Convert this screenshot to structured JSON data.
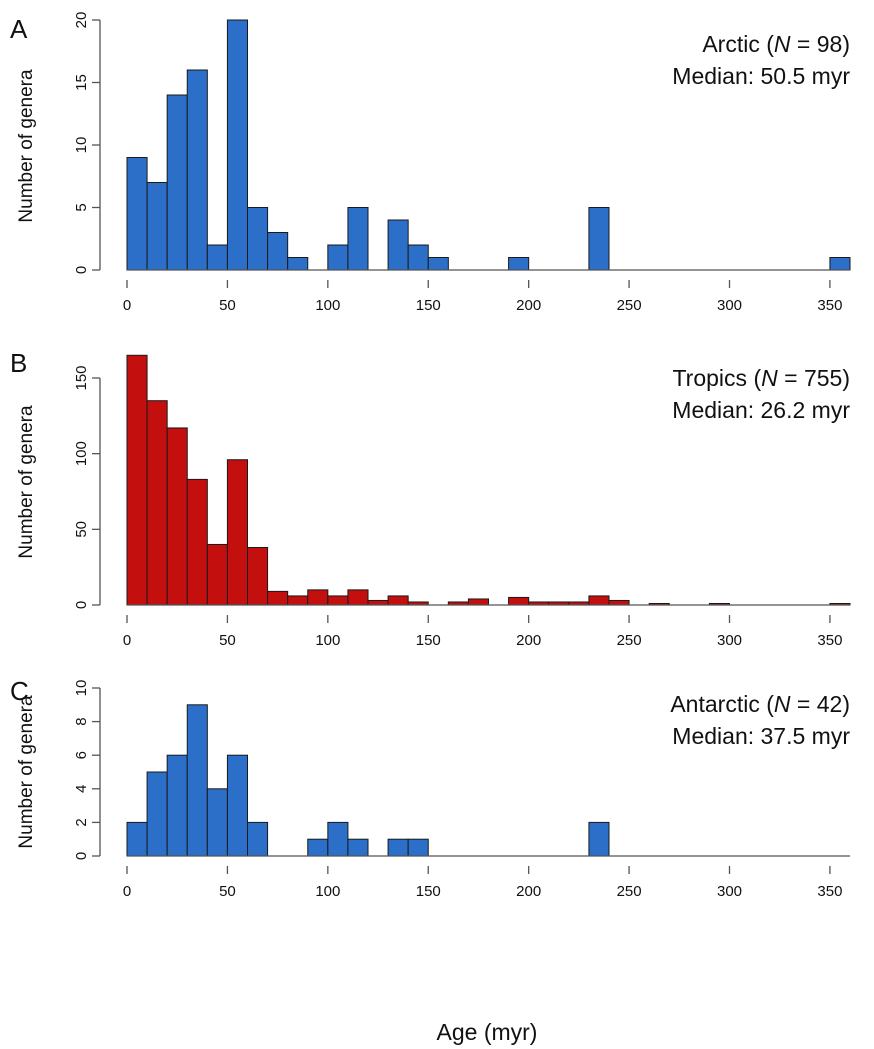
{
  "xlabel": "Age (myr)",
  "bin_width": 10,
  "colors": {
    "blue": "#2b6fc9",
    "red": "#c40f0f",
    "axis": "#555555",
    "bar_edge": "#1a1a1a"
  },
  "chart_data": [
    {
      "type": "bar",
      "panel": "A",
      "ylabel": "Number of genera",
      "annotation": {
        "name": "Arctic",
        "open": "(",
        "n_symbol": "N",
        "eq": " = ",
        "n": "98",
        "close": ")",
        "median_label": "Median: ",
        "median": "50.5",
        "median_unit": " myr"
      },
      "xlim": [
        0,
        360
      ],
      "ylim": [
        0,
        20
      ],
      "yticks": [
        "0",
        "5",
        "10",
        "15",
        "20"
      ],
      "xticks": [
        "0",
        "50",
        "100",
        "150",
        "200",
        "250",
        "300",
        "350"
      ],
      "color": "#2b6fc9",
      "bin_starts": [
        0,
        10,
        20,
        30,
        40,
        50,
        60,
        70,
        80,
        90,
        100,
        110,
        120,
        130,
        140,
        150,
        160,
        170,
        180,
        190,
        200,
        210,
        220,
        230,
        240,
        250,
        260,
        270,
        280,
        290,
        300,
        310,
        320,
        330,
        340,
        350
      ],
      "values": [
        9,
        7,
        14,
        16,
        2,
        20,
        5,
        3,
        1,
        0,
        2,
        5,
        0,
        4,
        2,
        1,
        0,
        0,
        0,
        1,
        0,
        0,
        0,
        5,
        0,
        0,
        0,
        0,
        0,
        0,
        0,
        0,
        0,
        0,
        0,
        1
      ]
    },
    {
      "type": "bar",
      "panel": "B",
      "ylabel": "Number of genera",
      "annotation": {
        "name": "Tropics",
        "open": "(",
        "n_symbol": "N",
        "eq": " = ",
        "n": "755",
        "close": ")",
        "median_label": "Median: ",
        "median": "26.2",
        "median_unit": " myr"
      },
      "xlim": [
        0,
        360
      ],
      "ylim": [
        0,
        150
      ],
      "yticks": [
        "0",
        "50",
        "100",
        "150"
      ],
      "xticks": [
        "0",
        "50",
        "100",
        "150",
        "200",
        "250",
        "300",
        "350"
      ],
      "color": "#c40f0f",
      "bin_starts": [
        0,
        10,
        20,
        30,
        40,
        50,
        60,
        70,
        80,
        90,
        100,
        110,
        120,
        130,
        140,
        150,
        160,
        170,
        180,
        190,
        200,
        210,
        220,
        230,
        240,
        250,
        260,
        270,
        280,
        290,
        300,
        310,
        320,
        330,
        340,
        350
      ],
      "values": [
        165,
        135,
        117,
        83,
        40,
        96,
        38,
        9,
        6,
        10,
        6,
        10,
        3,
        6,
        2,
        0,
        2,
        4,
        0,
        5,
        2,
        2,
        2,
        6,
        3,
        0,
        1,
        0,
        0,
        1,
        0,
        0,
        0,
        0,
        0,
        1
      ]
    },
    {
      "type": "bar",
      "panel": "C",
      "ylabel": "Number of genera",
      "annotation": {
        "name": "Antarctic",
        "open": "(",
        "n_symbol": "N",
        "eq": " = ",
        "n": "42",
        "close": ")",
        "median_label": "Median: ",
        "median": "37.5",
        "median_unit": " myr"
      },
      "xlim": [
        0,
        360
      ],
      "ylim": [
        0,
        10
      ],
      "yticks": [
        "0",
        "2",
        "4",
        "6",
        "8",
        "10"
      ],
      "xticks": [
        "0",
        "50",
        "100",
        "150",
        "200",
        "250",
        "300",
        "350"
      ],
      "color": "#2b6fc9",
      "bin_starts": [
        0,
        10,
        20,
        30,
        40,
        50,
        60,
        70,
        80,
        90,
        100,
        110,
        120,
        130,
        140,
        150,
        160,
        170,
        180,
        190,
        200,
        210,
        220,
        230,
        240,
        250,
        260,
        270,
        280,
        290,
        300,
        310,
        320,
        330,
        340,
        350
      ],
      "values": [
        2,
        5,
        6,
        9,
        4,
        6,
        2,
        0,
        0,
        1,
        2,
        1,
        0,
        1,
        1,
        0,
        0,
        0,
        0,
        0,
        0,
        0,
        0,
        2,
        0,
        0,
        0,
        0,
        0,
        0,
        0,
        0,
        0,
        0,
        0,
        0
      ]
    }
  ]
}
